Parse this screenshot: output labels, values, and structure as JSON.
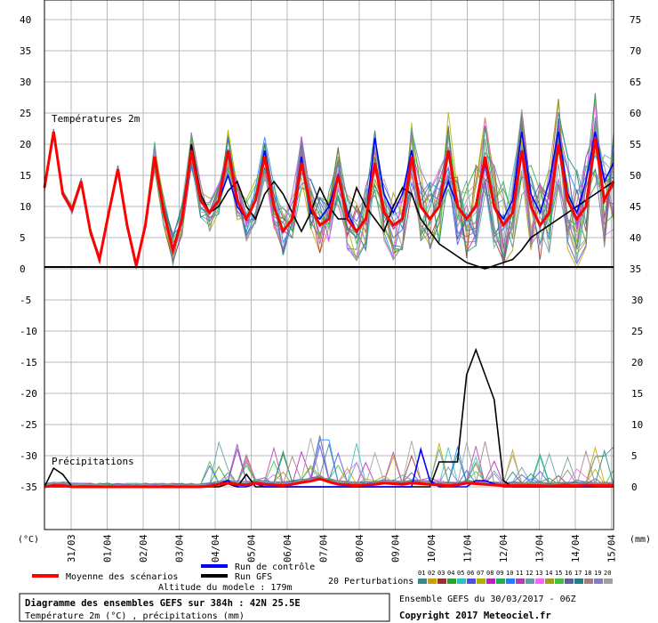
{
  "chart_data": [
    {
      "type": "line",
      "title": "Températures 2m",
      "unit_left": "(°C)",
      "y_left_ticks": [
        0,
        5,
        10,
        15,
        20,
        25,
        30,
        35,
        40
      ],
      "y_right_ticks": [
        35,
        40,
        45,
        50,
        55,
        60,
        65,
        70,
        75
      ],
      "ylim": [
        0,
        40
      ],
      "x_labels": [
        "31/03",
        "01/04",
        "02/04",
        "03/04",
        "04/04",
        "05/04",
        "06/04",
        "07/04",
        "08/04",
        "09/04",
        "10/04",
        "11/04",
        "12/04",
        "13/04",
        "14/04",
        "15/04"
      ],
      "x_step_hours": 6,
      "series": [
        {
          "name": "Run GFS",
          "values": [
            13,
            22,
            12,
            9.5,
            14,
            6,
            1.5,
            9,
            16,
            7,
            0.5,
            7,
            18,
            9,
            3,
            8,
            20,
            12,
            9,
            10,
            12.5,
            14,
            10,
            8,
            12,
            14,
            12,
            9,
            6,
            9,
            13,
            10,
            8,
            8,
            13,
            10,
            8,
            6,
            10,
            13,
            12,
            8,
            6,
            4,
            3,
            2,
            1,
            0.5,
            0,
            0.5,
            1,
            1.5,
            3,
            5,
            6,
            7,
            8,
            9,
            10,
            11,
            12,
            13,
            14
          ]
        },
        {
          "name": "Run de contrôle",
          "values": [
            13,
            22,
            12,
            9.5,
            14,
            6,
            1.5,
            9,
            16,
            7,
            0.5,
            7,
            18,
            9,
            3,
            8,
            19,
            11,
            9,
            11,
            15,
            10,
            8,
            11,
            19,
            10,
            6,
            8,
            18,
            9,
            8,
            10,
            15,
            9,
            6,
            8,
            21,
            12,
            9,
            12,
            19,
            10,
            8,
            10,
            14,
            10,
            8,
            10,
            17,
            10,
            8,
            11,
            22,
            12,
            9,
            14,
            22,
            12,
            9,
            14,
            22,
            14,
            17
          ]
        },
        {
          "name": "Moyenne des scénarios",
          "values": [
            13,
            22,
            12,
            9.5,
            14,
            6,
            1.5,
            9,
            16,
            7,
            0.5,
            7,
            18,
            9,
            3,
            8,
            19,
            11,
            9,
            11,
            19,
            11,
            8,
            11,
            18,
            10,
            6,
            8,
            17,
            10,
            7,
            8,
            15,
            8,
            6,
            8,
            17,
            9,
            7,
            8,
            18,
            10,
            8,
            10,
            19,
            10,
            8,
            10,
            18,
            10,
            7,
            9,
            19,
            10,
            7,
            9,
            20,
            11,
            8,
            10,
            21,
            11,
            14
          ]
        }
      ]
    },
    {
      "type": "line",
      "title": "Précipitations",
      "unit_right": "(mm)",
      "y_left_ticks": [
        0,
        -5,
        -10,
        -15,
        -20,
        -25,
        -30,
        -35
      ],
      "y_right_ticks": [
        35,
        30,
        25,
        20,
        15,
        10,
        5,
        0
      ],
      "ylim": [
        0,
        35
      ],
      "series": [
        {
          "name": "Run GFS",
          "values": [
            0,
            3,
            2,
            0,
            0,
            0,
            0,
            0,
            0,
            0,
            0,
            0,
            0,
            0,
            0,
            0,
            0,
            0,
            0,
            0,
            0.5,
            0,
            2,
            0,
            0,
            0,
            0,
            0,
            0,
            0,
            0,
            0,
            0,
            0,
            0,
            0,
            0,
            0,
            0,
            0,
            0,
            0,
            0,
            4,
            4,
            4,
            18,
            22,
            18,
            14,
            1,
            0,
            0,
            0,
            0,
            0,
            0,
            0,
            0,
            0,
            0,
            0,
            0
          ]
        },
        {
          "name": "Run de contrôle",
          "values": [
            0,
            0,
            0,
            0,
            0,
            0,
            0,
            0,
            0,
            0,
            0,
            0,
            0,
            0,
            0,
            0,
            0,
            0,
            0,
            0.5,
            1,
            0,
            0,
            0.5,
            0,
            0,
            0,
            0,
            0,
            0,
            0,
            0,
            0,
            0,
            0,
            0,
            0,
            0,
            0,
            0,
            0,
            6,
            1,
            0,
            0,
            0,
            0,
            1,
            1,
            0.5,
            0,
            0,
            0,
            0,
            0,
            0,
            0,
            0,
            0,
            0,
            0,
            0,
            0
          ]
        },
        {
          "name": "Moyenne des scénarios",
          "values": [
            0,
            0.2,
            0.2,
            0,
            0,
            0,
            0,
            0,
            0,
            0,
            0,
            0,
            0,
            0,
            0,
            0,
            0,
            0,
            0.1,
            0.4,
            0.6,
            0.4,
            0.3,
            0.6,
            0.4,
            0.3,
            0.2,
            0.4,
            0.7,
            0.9,
            1.3,
            0.8,
            0.4,
            0.3,
            0.2,
            0.3,
            0.4,
            0.6,
            0.5,
            0.4,
            0.6,
            0.5,
            0.4,
            0.3,
            0.2,
            0.3,
            0.6,
            0.5,
            0.4,
            0.3,
            0.2,
            0.2,
            0.2,
            0.2,
            0.2,
            0.1,
            0.2,
            0.2,
            0.2,
            0.3,
            0.2,
            0.2,
            0.2
          ]
        }
      ],
      "perturbations_note": "20 perturbation series drawn in background"
    }
  ],
  "legend": {
    "mean": "Moyenne des scénarios",
    "control": "Run de contrôle",
    "gfs": "Run GFS",
    "perturbations": "20 Perturbations",
    "altitude": "Altitude du modele : 179m",
    "pert_ids": [
      "01",
      "02",
      "03",
      "04",
      "05",
      "06",
      "07",
      "08",
      "09",
      "10",
      "11",
      "12",
      "13",
      "14",
      "15",
      "16",
      "17",
      "18",
      "19",
      "20"
    ],
    "pert_colors": [
      "#3a8a8a",
      "#c8a000",
      "#a03030",
      "#2ea02e",
      "#30c0c0",
      "#5050e0",
      "#b0b000",
      "#c020c0",
      "#20b050",
      "#2080ff",
      "#b040b0",
      "#60a0a0",
      "#ff60ff",
      "#a0a020",
      "#40c040",
      "#6060a0",
      "#208080",
      "#a08080",
      "#8080c0",
      "#a0a0a0"
    ]
  },
  "footer": {
    "title": "Diagramme des ensembles GEFS sur 384h : 42N 25.5E",
    "subtitle": "Température 2m (°C) , précipitations (mm)",
    "run": "Ensemble GEFS du 30/03/2017 - 06Z",
    "copyright": "Copyright 2017 Meteociel.fr"
  },
  "colors": {
    "gfs": "#000000",
    "control": "#0000ff",
    "mean": "#ff0000"
  }
}
